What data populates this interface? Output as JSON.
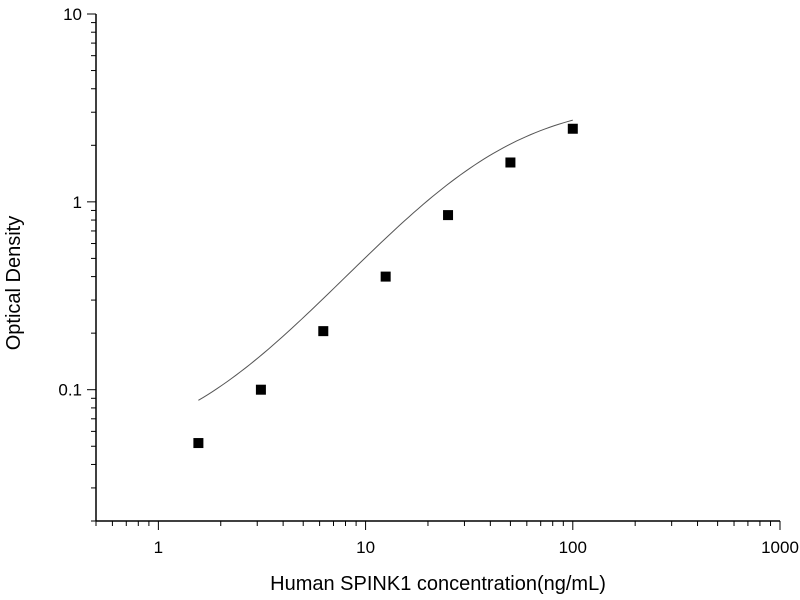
{
  "chart_data": {
    "type": "scatter",
    "xlabel": "Human SPINK1 concentration(ng/mL)",
    "ylabel": "Optical Density",
    "x_scale": "log",
    "y_scale": "log",
    "xlim": [
      0.5,
      1000
    ],
    "ylim": [
      0.02,
      10
    ],
    "x_ticks": [
      "1",
      "10",
      "100",
      "1000"
    ],
    "y_ticks": [
      "0.1",
      "1",
      "10"
    ],
    "grid": false,
    "colors": {
      "marker": "#000000",
      "curve": "#555555",
      "axis": "#000000"
    },
    "points": {
      "x": [
        1.56,
        3.125,
        6.25,
        12.5,
        25,
        50,
        100
      ],
      "y": [
        0.052,
        0.1,
        0.205,
        0.4,
        0.85,
        1.62,
        2.45
      ]
    },
    "fit_curve": {
      "type": "4PL",
      "x_range": [
        1.56,
        100
      ],
      "a": 0.045,
      "b": 1.35,
      "c": 40,
      "d": 3.5
    }
  }
}
